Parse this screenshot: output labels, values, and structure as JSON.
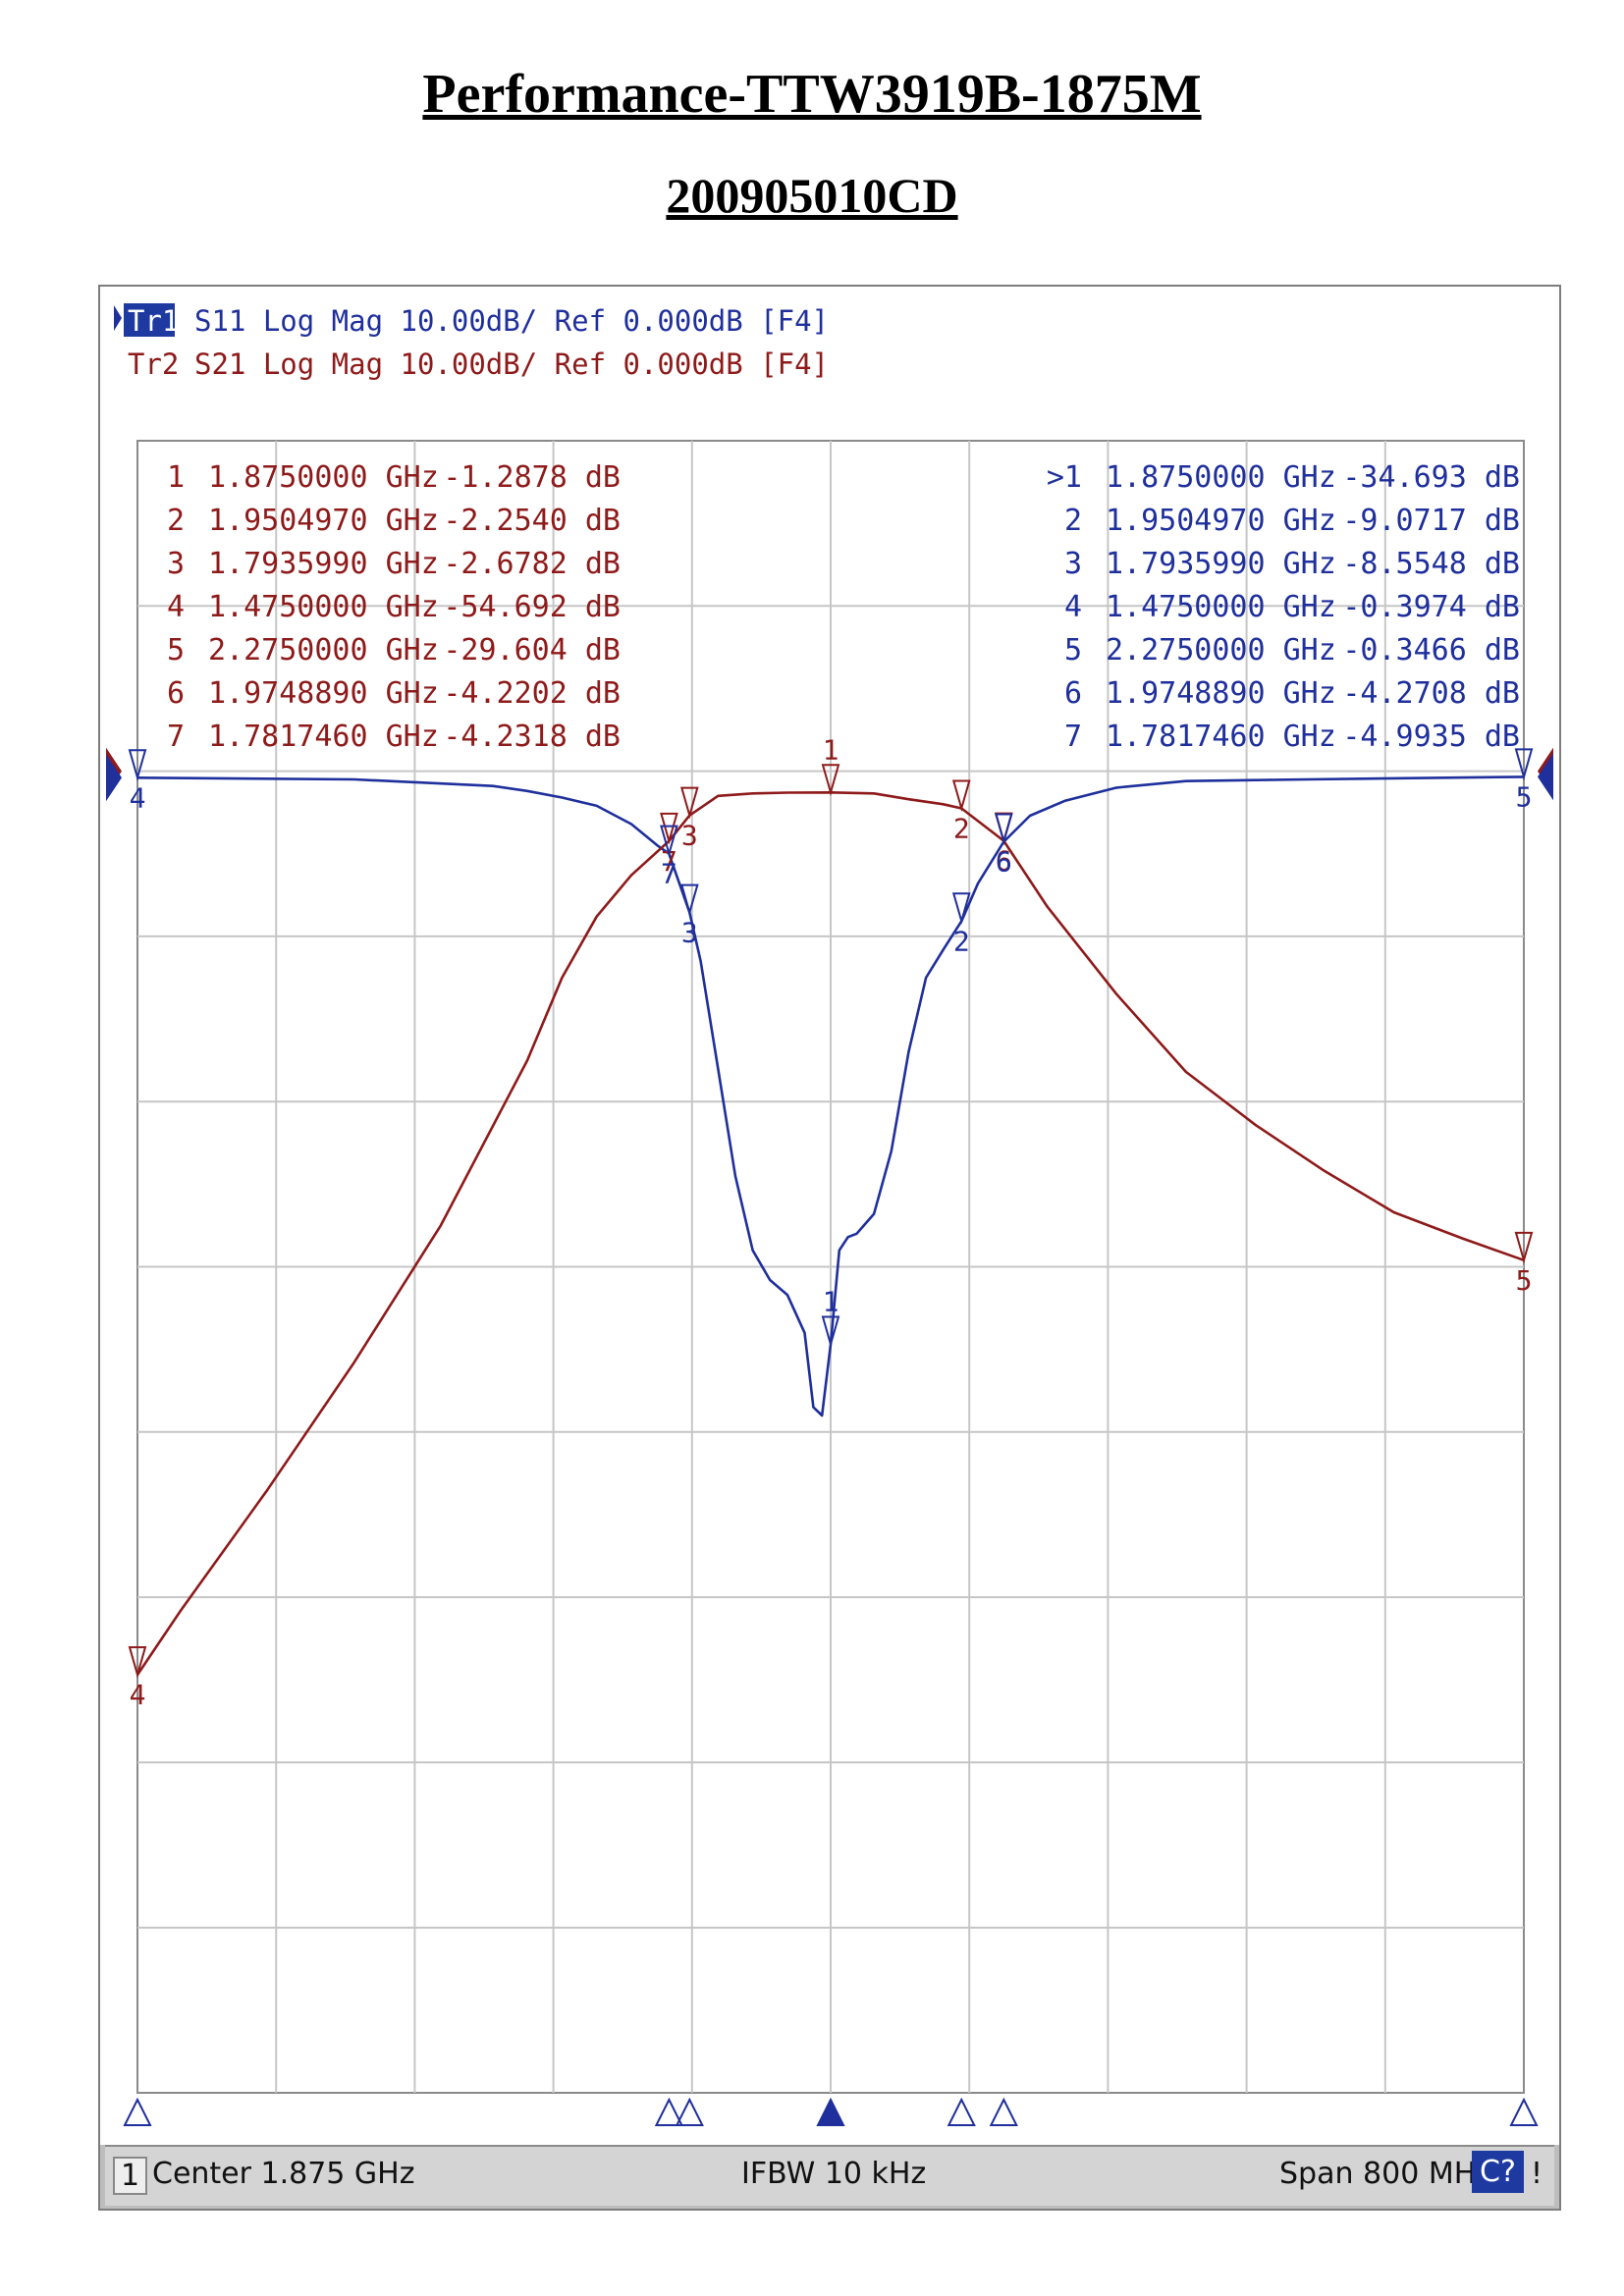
{
  "doc": {
    "title": "Performance-TTW3919B-1875M",
    "subtitle": "200905010CD"
  },
  "traces": [
    {
      "id": "Tr1",
      "text": "S11 Log Mag 10.00dB/ Ref 0.000dB [F4]",
      "color": "#1f2f9c"
    },
    {
      "id": "Tr2",
      "text": "S21 Log Mag 10.00dB/ Ref 0.000dB [F4]",
      "color": "#8e1a1a"
    }
  ],
  "status": {
    "channel": "1",
    "center": "Center 1.875 GHz",
    "ifbw": "IFBW 10 kHz",
    "span": "Span 800 MHz",
    "cal": "C?",
    "warn": "!"
  },
  "chart_data": {
    "type": "line",
    "xlabel": "",
    "ylabel": "",
    "xlim": [
      1.475,
      2.275
    ],
    "ylim": [
      -80,
      20
    ],
    "x_divisions": 10,
    "y_divisions": 10,
    "grid": true,
    "reference_level_db": 0,
    "series": [
      {
        "name": "S11",
        "trace": "Tr1",
        "color": "#1f2f9c",
        "x": [
          1.475,
          1.6,
          1.68,
          1.7,
          1.72,
          1.74,
          1.76,
          1.775,
          1.7817,
          1.7936,
          1.8,
          1.81,
          1.82,
          1.83,
          1.84,
          1.85,
          1.86,
          1.865,
          1.87,
          1.875,
          1.88,
          1.885,
          1.89,
          1.9,
          1.91,
          1.92,
          1.93,
          1.94,
          1.9505,
          1.96,
          1.9749,
          1.99,
          2.01,
          2.04,
          2.08,
          2.15,
          2.275
        ],
        "y": [
          -0.3974,
          -0.5,
          -0.9,
          -1.2,
          -1.6,
          -2.1,
          -3.2,
          -4.5,
          -4.9935,
          -8.5548,
          -11.5,
          -18,
          -24.5,
          -29,
          -30.8,
          -31.7,
          -34,
          -38.5,
          -39,
          -34.693,
          -29,
          -28.2,
          -28,
          -26.8,
          -23,
          -17,
          -12.5,
          -10.8,
          -9.0717,
          -6.8,
          -4.2708,
          -2.7,
          -1.8,
          -1.0,
          -0.6,
          -0.5,
          -0.3466
        ]
      },
      {
        "name": "S21",
        "trace": "Tr2",
        "color": "#8e1a1a",
        "x": [
          1.475,
          1.5,
          1.55,
          1.6,
          1.65,
          1.7,
          1.72,
          1.74,
          1.76,
          1.7817,
          1.7936,
          1.81,
          1.83,
          1.85,
          1.875,
          1.9,
          1.92,
          1.94,
          1.9505,
          1.9749,
          2.0,
          2.04,
          2.08,
          2.12,
          2.16,
          2.2,
          2.24,
          2.275
        ],
        "y": [
          -54.692,
          -50.8,
          -43.5,
          -35.8,
          -27.5,
          -17.5,
          -12.5,
          -8.8,
          -6.3,
          -4.2318,
          -2.6782,
          -1.5,
          -1.35,
          -1.3,
          -1.2878,
          -1.35,
          -1.7,
          -2.0,
          -2.254,
          -4.2202,
          -8.2,
          -13.5,
          -18.2,
          -21.4,
          -24.2,
          -26.7,
          -28.3,
          -29.604
        ]
      }
    ],
    "marker_tables": {
      "S21": [
        {
          "n": "1",
          "freq": "1.8750000 GHz",
          "val": "-1.2878 dB"
        },
        {
          "n": "2",
          "freq": "1.9504970 GHz",
          "val": "-2.2540 dB"
        },
        {
          "n": "3",
          "freq": "1.7935990 GHz",
          "val": "-2.6782 dB"
        },
        {
          "n": "4",
          "freq": "1.4750000 GHz",
          "val": "-54.692 dB"
        },
        {
          "n": "5",
          "freq": "2.2750000 GHz",
          "val": "-29.604 dB"
        },
        {
          "n": "6",
          "freq": "1.9748890 GHz",
          "val": "-4.2202 dB"
        },
        {
          "n": "7",
          "freq": "1.7817460 GHz",
          "val": "-4.2318 dB"
        }
      ],
      "S11": [
        {
          "n": ">1",
          "freq": "1.8750000 GHz",
          "val": "-34.693 dB"
        },
        {
          "n": "2",
          "freq": "1.9504970 GHz",
          "val": "-9.0717 dB"
        },
        {
          "n": "3",
          "freq": "1.7935990 GHz",
          "val": "-8.5548 dB"
        },
        {
          "n": "4",
          "freq": "1.4750000 GHz",
          "val": "-0.3974 dB"
        },
        {
          "n": "5",
          "freq": "2.2750000 GHz",
          "val": "-0.3466 dB"
        },
        {
          "n": "6",
          "freq": "1.9748890 GHz",
          "val": "-4.2708 dB"
        },
        {
          "n": "7",
          "freq": "1.7817460 GHz",
          "val": "-4.9935 dB"
        }
      ]
    },
    "markers": {
      "S21": [
        {
          "n": "1",
          "x": 1.875,
          "y": -1.2878
        },
        {
          "n": "2",
          "x": 1.950497,
          "y": -2.254
        },
        {
          "n": "3",
          "x": 1.793599,
          "y": -2.6782
        },
        {
          "n": "4",
          "x": 1.475,
          "y": -54.692
        },
        {
          "n": "5",
          "x": 2.275,
          "y": -29.604
        },
        {
          "n": "6",
          "x": 1.974889,
          "y": -4.2202
        },
        {
          "n": "7",
          "x": 1.781746,
          "y": -4.2318
        }
      ],
      "S11": [
        {
          "n": "1",
          "x": 1.875,
          "y": -34.693
        },
        {
          "n": "2",
          "x": 1.950497,
          "y": -9.0717
        },
        {
          "n": "3",
          "x": 1.793599,
          "y": -8.5548
        },
        {
          "n": "4",
          "x": 1.475,
          "y": -0.3974
        },
        {
          "n": "5",
          "x": 2.275,
          "y": -0.3466
        },
        {
          "n": "6",
          "x": 1.974889,
          "y": -4.2708
        },
        {
          "n": "7",
          "x": 1.781746,
          "y": -4.9935
        }
      ]
    }
  }
}
